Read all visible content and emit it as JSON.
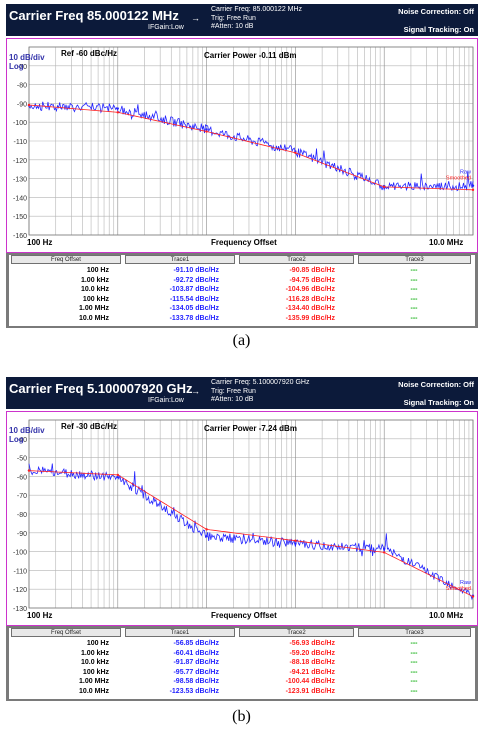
{
  "colors": {
    "trace1": "#2424ff",
    "trace2": "#ff2020",
    "header_bg": "#0c1a3a",
    "plot_border": "#cc33cc",
    "trace3": "#00aa00"
  },
  "table_headers": [
    "Freq Offset",
    "Trace1",
    "Trace2",
    "Trace3"
  ],
  "panels": [
    {
      "caption": "(a)",
      "header": {
        "carrier_title": "Carrier Freq 85.000122 MHz",
        "ifgain": "IFGain:Low",
        "carrier_freq": "Carrier Freq: 85.000122 MHz",
        "trig": "Trig: Free Run",
        "atten": "#Atten: 10 dB",
        "noise_correction": "Noise Correction: Off",
        "signal_tracking": "Signal Tracking: On"
      },
      "plot": {
        "scale_label": "10 dB/div",
        "log_label": "Log",
        "ref_label": "Ref  -60 dBc/Hz",
        "carrier_power": "Carrier Power -0.11 dBm",
        "x_start": "100 Hz",
        "x_label": "Frequency Offset",
        "x_stop": "10.0 MHz",
        "y_ticks": [
          "-70",
          "-80",
          "-90",
          "-100",
          "-110",
          "-120",
          "-130",
          "-140",
          "-150",
          "-160"
        ],
        "legend_raw": "Raw",
        "legend_smoothed": "Smoothed"
      },
      "table": [
        [
          "100 Hz",
          "-91.10 dBc/Hz",
          "-90.85 dBc/Hz",
          "---"
        ],
        [
          "1.00 kHz",
          "-92.72 dBc/Hz",
          "-94.75 dBc/Hz",
          "---"
        ],
        [
          "10.0 kHz",
          "-103.87 dBc/Hz",
          "-104.96 dBc/Hz",
          "---"
        ],
        [
          "100 kHz",
          "-115.54 dBc/Hz",
          "-116.28 dBc/Hz",
          "---"
        ],
        [
          "1.00 MHz",
          "-134.05 dBc/Hz",
          "-134.40 dBc/Hz",
          "---"
        ],
        [
          "10.0 MHz",
          "-133.78 dBc/Hz",
          "-135.99 dBc/Hz",
          "---"
        ]
      ]
    },
    {
      "caption": "(b)",
      "header": {
        "carrier_title": "Carrier Freq 5.100007920 GHz",
        "ifgain": "IFGain:Low",
        "carrier_freq": "Carrier Freq: 5.100007920 GHz",
        "trig": "Trig: Free Run",
        "atten": "#Atten: 10 dB",
        "noise_correction": "Noise Correction: Off",
        "signal_tracking": "Signal Tracking: On"
      },
      "plot": {
        "scale_label": "10 dB/div",
        "log_label": "Log",
        "ref_label": "Ref  -30 dBc/Hz",
        "carrier_power": "Carrier Power -7.24 dBm",
        "x_start": "100 Hz",
        "x_label": "Frequency Offset",
        "x_stop": "10.0 MHz",
        "y_ticks": [
          "-40",
          "-50",
          "-60",
          "-70",
          "-80",
          "-90",
          "-100",
          "-110",
          "-120",
          "-130"
        ],
        "legend_raw": "Raw",
        "legend_smoothed": "Smoothed"
      },
      "table": [
        [
          "100 Hz",
          "-56.85 dBc/Hz",
          "-56.93 dBc/Hz",
          "---"
        ],
        [
          "1.00 kHz",
          "-60.41 dBc/Hz",
          "-59.20 dBc/Hz",
          "---"
        ],
        [
          "10.0 kHz",
          "-91.87 dBc/Hz",
          "-88.18 dBc/Hz",
          "---"
        ],
        [
          "100 kHz",
          "-95.77 dBc/Hz",
          "-94.21 dBc/Hz",
          "---"
        ],
        [
          "1.00 MHz",
          "-98.58 dBc/Hz",
          "-100.44 dBc/Hz",
          "---"
        ],
        [
          "10.0 MHz",
          "-123.53 dBc/Hz",
          "-123.91 dBc/Hz",
          "---"
        ]
      ]
    }
  ],
  "chart_data": [
    {
      "type": "line",
      "x_scale": "log",
      "xlim": [
        "100 Hz",
        "10.0 MHz"
      ],
      "ylim": [
        -160,
        -60
      ],
      "x": [
        100,
        1000,
        10000,
        100000,
        1000000,
        10000000
      ],
      "series": [
        {
          "name": "Raw",
          "values": [
            -91.1,
            -92.72,
            -103.87,
            -115.54,
            -134.05,
            -133.78
          ]
        },
        {
          "name": "Smoothed",
          "values": [
            -90.85,
            -94.75,
            -104.96,
            -116.28,
            -134.4,
            -135.99
          ]
        }
      ],
      "grid": true
    },
    {
      "type": "line",
      "x_scale": "log",
      "xlim": [
        "100 Hz",
        "10.0 MHz"
      ],
      "ylim": [
        -130,
        -30
      ],
      "x": [
        100,
        1000,
        10000,
        100000,
        1000000,
        10000000
      ],
      "series": [
        {
          "name": "Raw",
          "values": [
            -56.85,
            -60.41,
            -91.87,
            -95.77,
            -98.58,
            -123.53
          ]
        },
        {
          "name": "Smoothed",
          "values": [
            -56.93,
            -59.2,
            -88.18,
            -94.21,
            -100.44,
            -123.91
          ]
        }
      ],
      "grid": true
    }
  ]
}
